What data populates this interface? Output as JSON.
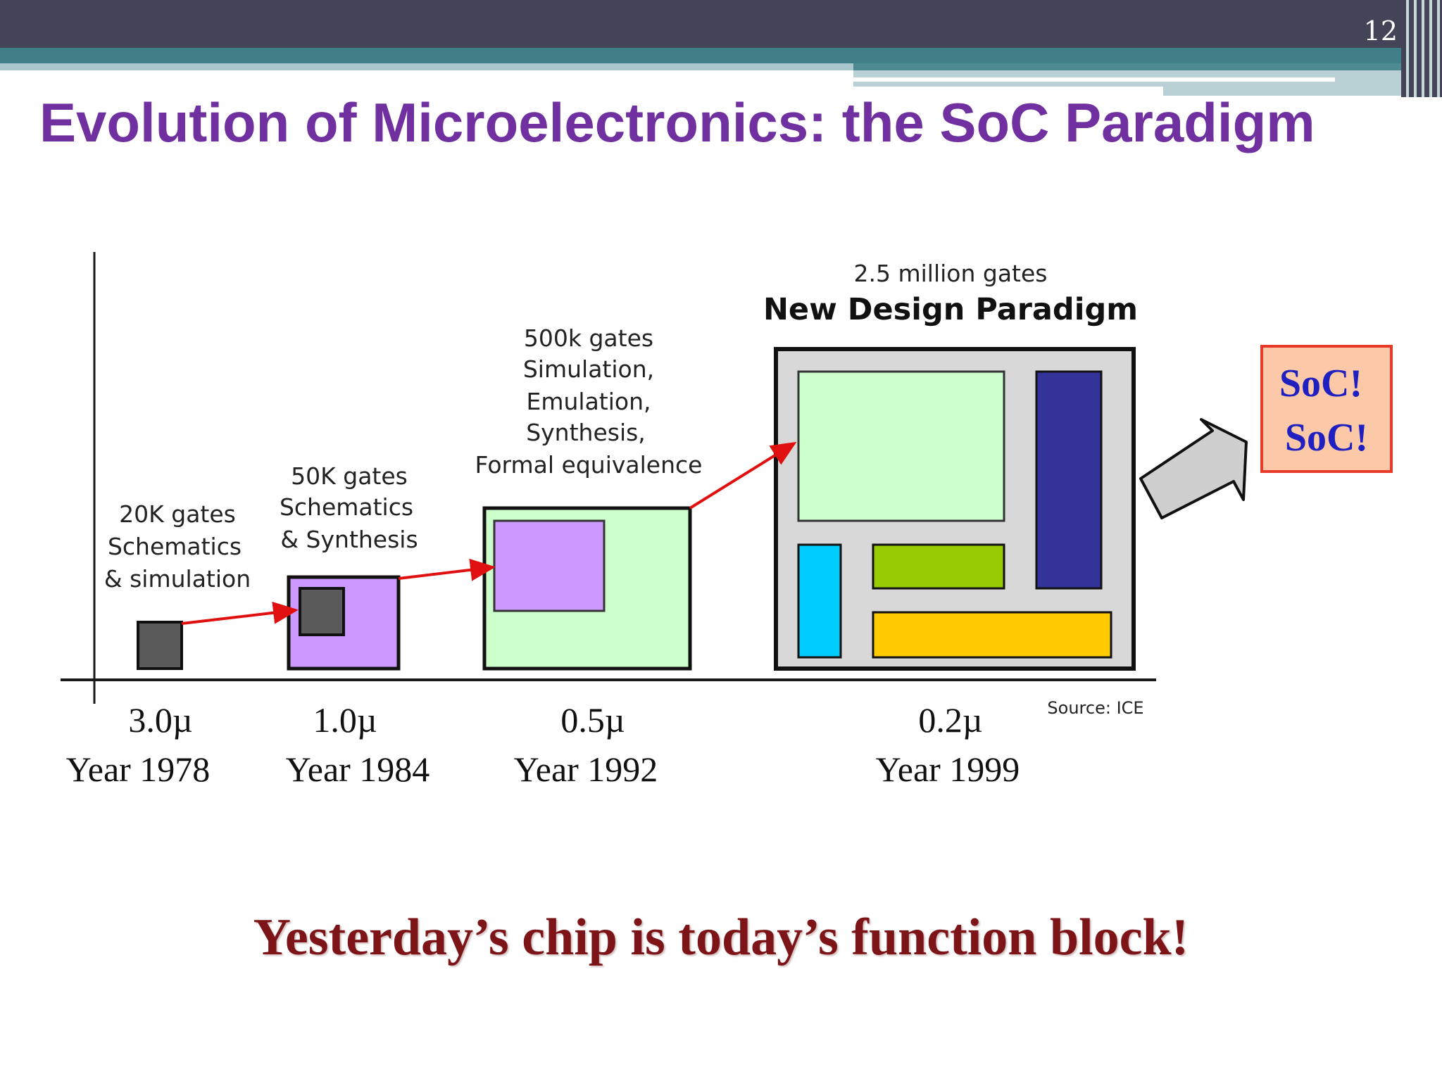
{
  "slide": {
    "page_number": "12",
    "title": "Evolution of Microelectronics: the SoC Paradigm",
    "tagline": "Yesterday’s chip is today’s function block!"
  },
  "diagram": {
    "stages": [
      {
        "gates": "20K gates",
        "method_lines": [
          "Schematics",
          "& simulation"
        ],
        "process": "3.0µ",
        "year": "Year 1978"
      },
      {
        "gates": "50K gates",
        "method_lines": [
          "Schematics",
          "& Synthesis"
        ],
        "process": "1.0µ",
        "year": "Year 1984"
      },
      {
        "gates": "500k gates",
        "method_lines": [
          "Simulation,",
          "Emulation,",
          "Synthesis,",
          "Formal equivalence"
        ],
        "process": "0.5µ",
        "year": "Year 1992"
      },
      {
        "gates": "2.5 million gates",
        "heading": "New Design Paradigm",
        "process": "0.2µ",
        "year": "Year 1999"
      }
    ],
    "source": "Source: ICE",
    "soc_lines": [
      "SoC!",
      "SoC!"
    ]
  },
  "colors": {
    "title": "#7030a0",
    "tagline": "#7d1418",
    "arrow": "#e01010",
    "chip_gray": "#5a5a5a",
    "chip_purple": "#cc99ff",
    "chip_green": "#ccffcc",
    "soc_frame": "#d8d8d8",
    "block_navy": "#333399",
    "block_cyan": "#00ccff",
    "block_lime": "#99cc00",
    "block_yellow": "#ffcc00",
    "soc_box_fill": "#fbc9a8",
    "soc_box_border": "#e8392a",
    "soc_text": "#2020c0"
  }
}
